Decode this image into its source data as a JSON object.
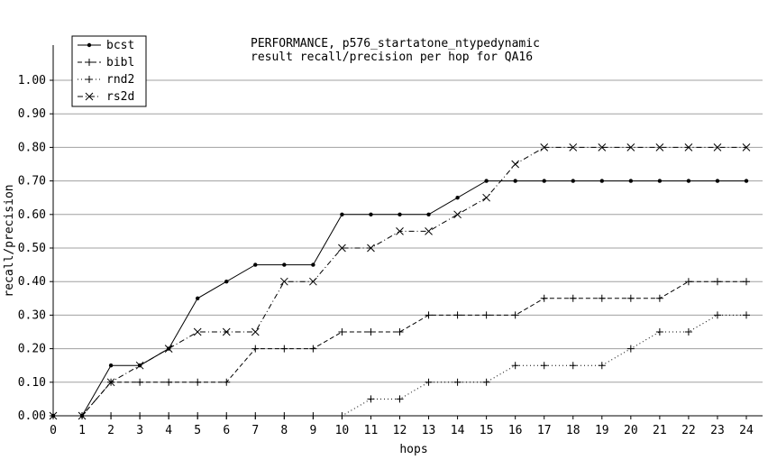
{
  "chart_data": {
    "type": "line",
    "title_lines": [
      "PERFORMANCE, p576_startatone_ntypedynamic",
      "result recall/precision per hop for QA16"
    ],
    "xlabel": "hops",
    "ylabel": "recall/precision",
    "xlim": [
      0,
      24
    ],
    "ylim": [
      0,
      1.0
    ],
    "x": [
      0,
      1,
      2,
      3,
      4,
      5,
      6,
      7,
      8,
      9,
      10,
      11,
      12,
      13,
      14,
      15,
      16,
      17,
      18,
      19,
      20,
      21,
      22,
      23,
      24
    ],
    "x_ticks": [
      "0",
      "1",
      "2",
      "3",
      "4",
      "5",
      "6",
      "7",
      "8",
      "9",
      "10",
      "11",
      "12",
      "13",
      "14",
      "15",
      "16",
      "17",
      "18",
      "19",
      "20",
      "21",
      "22",
      "23",
      "24"
    ],
    "y_ticks": [
      {
        "v": 0.0,
        "label": "0.00"
      },
      {
        "v": 0.1,
        "label": "0.10"
      },
      {
        "v": 0.2,
        "label": "0.20"
      },
      {
        "v": 0.3,
        "label": "0.30"
      },
      {
        "v": 0.4,
        "label": "0.40"
      },
      {
        "v": 0.5,
        "label": "0.50"
      },
      {
        "v": 0.6,
        "label": "0.60"
      },
      {
        "v": 0.7,
        "label": "0.70"
      },
      {
        "v": 0.8,
        "label": "0.80"
      },
      {
        "v": 0.9,
        "label": "0.90"
      },
      {
        "v": 1.0,
        "label": "1.00"
      }
    ],
    "grid": "horizontal",
    "legend_position": "top-left",
    "series": [
      {
        "name": "bcst",
        "marker": "dot",
        "dash": "none",
        "color": "#000000",
        "values": [
          0,
          0,
          0.15,
          0.15,
          0.2,
          0.35,
          0.4,
          0.45,
          0.45,
          0.45,
          0.6,
          0.6,
          0.6,
          0.6,
          0.65,
          0.7,
          0.7,
          0.7,
          0.7,
          0.7,
          0.7,
          0.7,
          0.7,
          0.7,
          0.7
        ]
      },
      {
        "name": "bibl",
        "marker": "plus",
        "dash": "dashed",
        "color": "#000000",
        "values": [
          0,
          0,
          0.1,
          0.1,
          0.1,
          0.1,
          0.1,
          0.2,
          0.2,
          0.2,
          0.25,
          0.25,
          0.25,
          0.3,
          0.3,
          0.3,
          0.3,
          0.35,
          0.35,
          0.35,
          0.35,
          0.35,
          0.4,
          0.4,
          0.4
        ]
      },
      {
        "name": "rnd2",
        "marker": "plus",
        "dash": "dotted",
        "color": "#000000",
        "values": [
          0,
          0,
          0,
          0,
          0,
          0,
          0,
          0,
          0,
          0,
          0,
          0.05,
          0.05,
          0.1,
          0.1,
          0.1,
          0.15,
          0.15,
          0.15,
          0.15,
          0.2,
          0.25,
          0.25,
          0.3,
          0.3
        ]
      },
      {
        "name": "rs2d",
        "marker": "cross",
        "dash": "dashdot",
        "color": "#000000",
        "values": [
          0,
          0,
          0.1,
          0.15,
          0.2,
          0.25,
          0.25,
          0.25,
          0.4,
          0.4,
          0.5,
          0.5,
          0.55,
          0.55,
          0.6,
          0.65,
          0.75,
          0.8,
          0.8,
          0.8,
          0.8,
          0.8,
          0.8,
          0.8,
          0.8
        ]
      }
    ]
  }
}
